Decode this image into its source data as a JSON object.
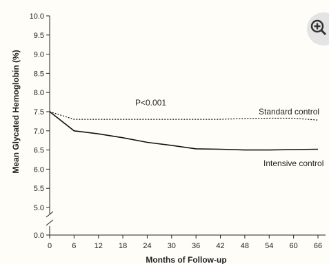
{
  "chart_data": {
    "type": "line",
    "xlabel": "Months of Follow-up",
    "ylabel": "Mean Glycated Hemoglobin (%)",
    "x_ticks": [
      0,
      6,
      12,
      18,
      24,
      30,
      36,
      42,
      48,
      54,
      60,
      66
    ],
    "y_ticks": [
      0.0,
      5.0,
      5.5,
      6.0,
      6.5,
      7.0,
      7.5,
      8.0,
      8.5,
      9.0,
      9.5,
      10.0
    ],
    "x_tick_labels": [
      "0",
      "6",
      "12",
      "18",
      "24",
      "30",
      "36",
      "42",
      "48",
      "54",
      "60",
      "66"
    ],
    "y_tick_labels": [
      "0.0",
      "5.0",
      "5.5",
      "6.0",
      "6.5",
      "7.0",
      "7.5",
      "8.0",
      "8.5",
      "9.0",
      "9.5",
      "10.0"
    ],
    "xlim": [
      0,
      66
    ],
    "ylim": [
      5.0,
      10.0
    ],
    "axis_break": "y between 0.0 and 5.0",
    "annotation": "P<0.001",
    "series": [
      {
        "name": "Standard control",
        "style": "dotted",
        "x": [
          0,
          6,
          12,
          18,
          24,
          30,
          36,
          42,
          48,
          54,
          60,
          66
        ],
        "y": [
          7.5,
          7.3,
          7.3,
          7.3,
          7.3,
          7.3,
          7.3,
          7.3,
          7.32,
          7.33,
          7.33,
          7.28
        ]
      },
      {
        "name": "Intensive control",
        "style": "solid",
        "x": [
          0,
          6,
          12,
          18,
          24,
          30,
          36,
          42,
          48,
          54,
          60,
          66
        ],
        "y": [
          7.5,
          7.0,
          6.92,
          6.82,
          6.7,
          6.62,
          6.53,
          6.52,
          6.5,
          6.5,
          6.51,
          6.52
        ]
      }
    ]
  },
  "zoom": {
    "icon": "zoom-in-icon"
  }
}
